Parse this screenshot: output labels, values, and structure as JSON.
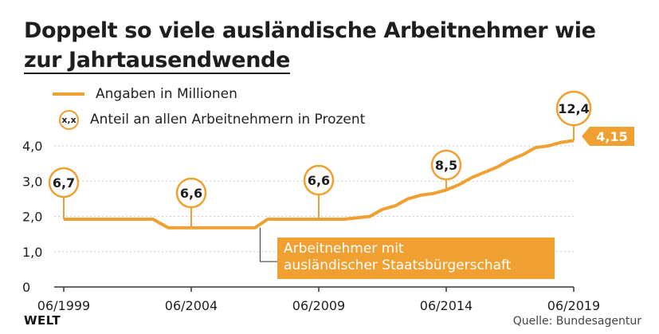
{
  "chart_data": {
    "type": "line",
    "title_line1": "Doppelt so viele ausländische Arbeitnehmer wie",
    "title_line2": "zur Jahrtausendwende",
    "legend": {
      "line_label": "Angaben in Millionen",
      "badge_symbol": "x,x",
      "badge_label": "Anteil an allen Arbeitnehmern in Prozent"
    },
    "y_ticks": [
      {
        "value": 0,
        "label": "0"
      },
      {
        "value": 1,
        "label": "1,0"
      },
      {
        "value": 2,
        "label": "2,0"
      },
      {
        "value": 3,
        "label": "3,0"
      },
      {
        "value": 4,
        "label": "4,0"
      }
    ],
    "ylim": [
      0,
      4.2
    ],
    "x_range": [
      1999.5,
      2019.5
    ],
    "x_ticks": [
      {
        "x": 1999.5,
        "label": "06/1999"
      },
      {
        "x": 2004.5,
        "label": "06/2004"
      },
      {
        "x": 2009.5,
        "label": "06/2009"
      },
      {
        "x": 2014.5,
        "label": "06/2014"
      },
      {
        "x": 2019.5,
        "label": "06/2019"
      }
    ],
    "series": [
      {
        "name": "Arbeitnehmer mit ausländischer Staatsbürgerschaft",
        "x": [
          1999.5,
          2000.5,
          2001.5,
          2002.5,
          2003.0,
          2003.6,
          2004.5,
          2005.5,
          2006.5,
          2007.0,
          2007.5,
          2008.5,
          2009.5,
          2010.5,
          2011.5,
          2012.0,
          2012.5,
          2013.0,
          2013.5,
          2014.0,
          2014.5,
          2015.0,
          2015.5,
          2016.0,
          2016.5,
          2017.0,
          2017.5,
          2018.0,
          2018.5,
          2019.0,
          2019.5
        ],
        "values": [
          1.92,
          1.92,
          1.92,
          1.92,
          1.92,
          1.68,
          1.68,
          1.68,
          1.68,
          1.68,
          1.92,
          1.92,
          1.92,
          1.92,
          2.0,
          2.2,
          2.3,
          2.5,
          2.6,
          2.65,
          2.75,
          2.9,
          3.1,
          3.25,
          3.4,
          3.6,
          3.75,
          3.95,
          4.0,
          4.1,
          4.15
        ]
      }
    ],
    "share_annotations": [
      {
        "x": 1999.5,
        "label": "6,7"
      },
      {
        "x": 2004.5,
        "label": "6,6"
      },
      {
        "x": 2009.5,
        "label": "6,6"
      },
      {
        "x": 2014.5,
        "label": "8,5"
      },
      {
        "x": 2019.5,
        "label": "12,4"
      }
    ],
    "series_label_line1": "Arbeitnehmer mit",
    "series_label_line2": "ausländischer Staatsbürgerschaft",
    "end_value_label": "4,15",
    "colors": {
      "line": "#f0a030",
      "text": "#1e1e1e",
      "axis": "#333333",
      "grid": "#cccccc"
    }
  },
  "footer": {
    "brand": "WELT",
    "source": "Quelle: Bundesagentur"
  }
}
